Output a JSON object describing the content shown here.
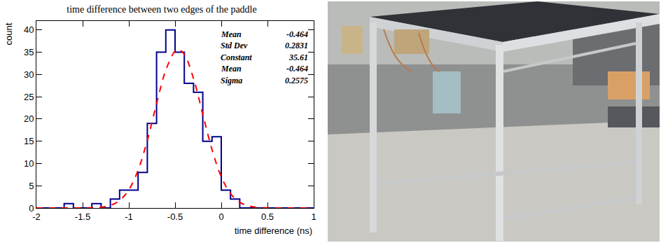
{
  "chart_data": {
    "type": "histogram",
    "title": "time difference between two edges of the paddle",
    "x_label": "time difference (ns)",
    "y_label": "count",
    "bins": [
      -2,
      -1.9,
      -1.8,
      -1.7,
      -1.6,
      -1.5,
      -1.4,
      -1.3,
      -1.2,
      -1.1,
      -1,
      -0.9,
      -0.8,
      -0.7,
      -0.6,
      -0.5,
      -0.4,
      -0.3,
      -0.2,
      -0.1,
      0,
      0.1,
      0.2,
      0.3,
      0.4,
      0.5,
      0.6,
      0.7,
      0.8,
      0.9,
      1
    ],
    "counts": [
      0,
      0,
      0,
      1,
      0,
      0,
      1,
      0,
      2,
      4,
      4,
      8,
      19,
      35,
      40,
      35,
      28,
      26,
      15,
      16,
      4,
      2,
      0,
      0,
      0,
      0,
      0,
      0,
      0,
      0
    ],
    "color": "#00008b",
    "fit": {
      "x": [
        -2,
        -1.9,
        -1.8,
        -1.7,
        -1.6,
        -1.5,
        -1.4,
        -1.3,
        -1.2,
        -1.1,
        -1,
        -0.9,
        -0.8,
        -0.7,
        -0.6,
        -0.5,
        -0.464,
        -0.4,
        -0.3,
        -0.2,
        -0.1,
        0,
        0.1,
        0.2,
        0.3,
        0.4,
        0.5,
        0.6,
        0.7,
        0.8,
        0.9,
        1
      ],
      "values": [
        0,
        0,
        0,
        0,
        0,
        0.01,
        0.05,
        0.18,
        0.6,
        1.68,
        4.08,
        8.49,
        15.2,
        23.4,
        30.97,
        35.26,
        35.61,
        34.53,
        29.07,
        21.05,
        13.11,
        7.02,
        3.23,
        1.28,
        0.44,
        0.13,
        0.03,
        0,
        0,
        0,
        0,
        0
      ],
      "color": "#ff0000",
      "line_style": "dashed"
    },
    "stats": [
      {
        "label": "Mean",
        "value": -0.464
      },
      {
        "label": "Std Dev",
        "value": 0.2831
      },
      {
        "label": "Constant",
        "value": 35.61
      },
      {
        "label": "Mean",
        "value": -0.464
      },
      {
        "label": "Sigma",
        "value": 0.2575
      }
    ],
    "xlim": [
      -2,
      1
    ],
    "xticks": [
      -2,
      -1.5,
      -1,
      -0.5,
      0,
      0.5,
      1
    ],
    "ylim": [
      0,
      42
    ],
    "yticks": [
      0,
      5,
      10,
      15,
      20,
      25,
      30,
      35,
      40
    ],
    "grid": false
  }
}
